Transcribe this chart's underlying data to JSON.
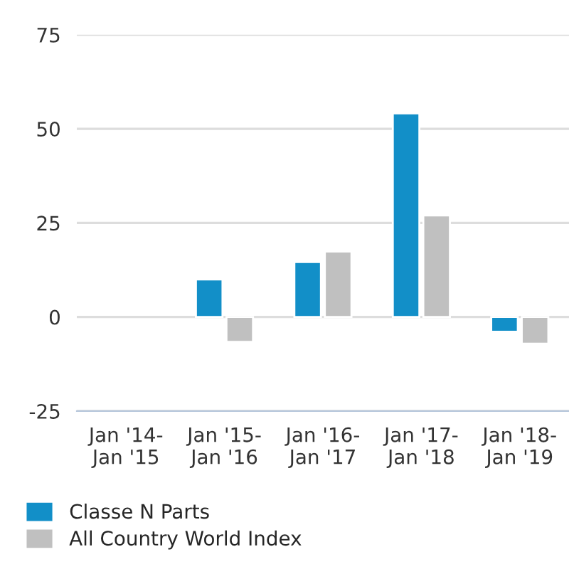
{
  "chart_data": {
    "type": "bar",
    "categories": [
      "Jan '14-\nJan '15",
      "Jan '15-\nJan '16",
      "Jan '16-\nJan '17",
      "Jan '17-\nJan '18",
      "Jan '18-\nJan '19"
    ],
    "series": [
      {
        "name": "Classe N Parts",
        "color": "#128fc8",
        "values": [
          null,
          10.0,
          14.6,
          54.1,
          -3.9
        ]
      },
      {
        "name": "All Country World Index",
        "color": "#c0c0c0",
        "values": [
          null,
          -6.6,
          17.4,
          27.0,
          -7.1
        ]
      }
    ],
    "ylim": [
      -25,
      75
    ],
    "yticks": [
      -25,
      0,
      25,
      50,
      75
    ],
    "grid": "y",
    "legend": "bottom"
  }
}
